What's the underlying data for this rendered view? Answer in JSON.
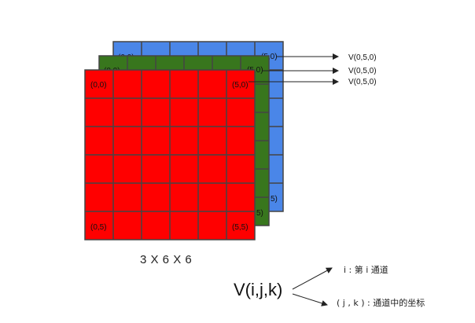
{
  "channels": [
    {
      "name": "blue",
      "color": "#4a86e8",
      "labels": {
        "top_left": "(0,0)",
        "top_right": "(5,0)",
        "bottom_right": "5)"
      },
      "arrow_label": "V(0,5,0)"
    },
    {
      "name": "green",
      "color": "#38761d",
      "labels": {
        "top_left": "(0,0)",
        "top_right": "(5,0)",
        "bottom_right": "5)"
      },
      "arrow_label": "V(0,5,0)"
    },
    {
      "name": "red",
      "color": "#ff0000",
      "labels": {
        "top_left": "(0,0)",
        "top_right": "(5,0)",
        "bottom_left": "(0,5)",
        "bottom_right": "(5,5)"
      },
      "arrow_label": "V(0,5,0)"
    }
  ],
  "grid": {
    "rows": 6,
    "cols": 6,
    "line_color": "#444444"
  },
  "dimension_label": "3 X 6 X 6",
  "formula": "V(i,j,k)",
  "annotations": {
    "i_note": "i : 第 i  通道",
    "jk_note": "( j , k ) : 通道中的坐标"
  }
}
